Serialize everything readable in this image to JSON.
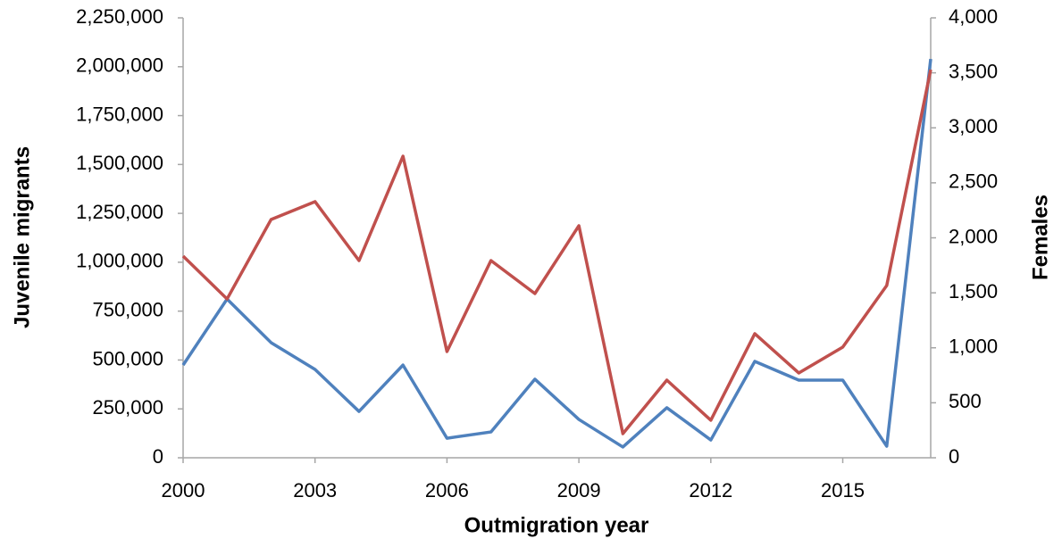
{
  "chart_data": {
    "type": "line",
    "y_label": "Juvenile migrants",
    "y2_label": "Females",
    "x_label": "Outmigration year",
    "x": [
      2000,
      2001,
      2002,
      2003,
      2004,
      2005,
      2006,
      2007,
      2008,
      2009,
      2010,
      2011,
      2012,
      2013,
      2014,
      2015,
      2016,
      2017
    ],
    "series": [
      {
        "color": "#4f81bd",
        "axis": "y",
        "values": [
          474000,
          812000,
          589000,
          452000,
          237000,
          474000,
          100000,
          132000,
          402000,
          196000,
          55000,
          256000,
          91000,
          493000,
          397000,
          397000,
          59000,
          2040000
        ]
      },
      {
        "color": "#c0504d",
        "axis": "y2",
        "values": [
          1834,
          1444,
          2166,
          2329,
          1793,
          2742,
          966,
          1793,
          1493,
          2110,
          219,
          706,
          341,
          1128,
          771,
          1006,
          1566,
          3529
        ]
      }
    ],
    "xlim": [
      2000,
      2017
    ],
    "xticks": [
      2000,
      2003,
      2006,
      2009,
      2012,
      2015
    ],
    "ylim": [
      0,
      2250000
    ],
    "yticks": [
      0,
      {
        "value": 250000,
        "label": "250,000"
      },
      {
        "value": 500000,
        "label": "500,000"
      },
      {
        "value": 750000,
        "label": "750,000"
      },
      {
        "value": 1000000,
        "label": "1,000,000"
      },
      {
        "value": 1250000,
        "label": "1,250,000"
      },
      {
        "value": 1500000,
        "label": "1,500,000"
      },
      {
        "value": 1750000,
        "label": "1,750,000"
      },
      {
        "value": 2000000,
        "label": "2,000,000"
      },
      {
        "value": 2250000,
        "label": "2,250,000"
      }
    ],
    "y2lim": [
      0,
      4000
    ],
    "y2ticks": [
      0,
      500,
      {
        "value": 1000,
        "label": "1,000"
      },
      {
        "value": 1500,
        "label": "1,500"
      },
      {
        "value": 2000,
        "label": "2,000"
      },
      {
        "value": 2500,
        "label": "2,500"
      },
      {
        "value": 3000,
        "label": "3,000"
      },
      {
        "value": 3500,
        "label": "3,500"
      },
      {
        "value": 4000,
        "label": "4,000"
      }
    ],
    "grid": false
  }
}
